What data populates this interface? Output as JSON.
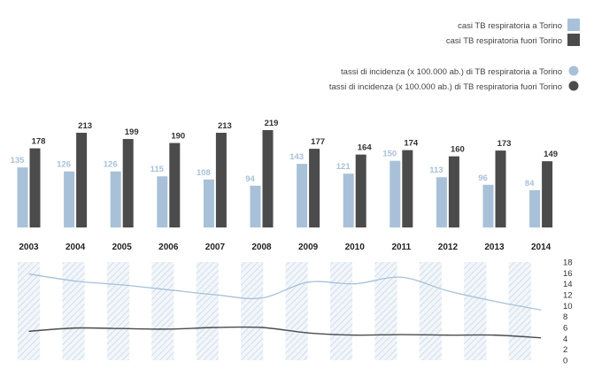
{
  "chart_data": [
    {
      "type": "bar",
      "categories": [
        "2003",
        "2004",
        "2005",
        "2006",
        "2007",
        "2008",
        "2009",
        "2010",
        "2011",
        "2012",
        "2013",
        "2014"
      ],
      "series": [
        {
          "name": "casi TB respiratoria a Torino",
          "color": "#a8c1d9",
          "values": [
            135,
            126,
            126,
            115,
            108,
            94,
            143,
            121,
            150,
            113,
            96,
            84
          ]
        },
        {
          "name": "casi TB respiratoria fuori Torino",
          "color": "#4b4b4b",
          "values": [
            178,
            213,
            199,
            190,
            213,
            219,
            177,
            164,
            174,
            160,
            173,
            149
          ]
        }
      ],
      "legend_position": "top-right"
    },
    {
      "type": "line",
      "x": [
        "2003",
        "2004",
        "2005",
        "2006",
        "2007",
        "2008",
        "2009",
        "2010",
        "2011",
        "2012",
        "2013",
        "2014"
      ],
      "series": [
        {
          "name": "tassi di incidenza (x 100.000 ab.) di TB respiratoria a Torino",
          "color": "#a8c1d9",
          "values": [
            15.8,
            14.5,
            13.8,
            12.9,
            12.0,
            11.4,
            14.3,
            14.0,
            15.2,
            12.7,
            10.8,
            9.2
          ]
        },
        {
          "name": "tassi di incidenza (x 100.000 ab.) di TB respiratoria fuori Torino",
          "color": "#4b4b4b",
          "values": [
            5.3,
            5.9,
            5.8,
            5.7,
            6.0,
            6.0,
            5.0,
            4.6,
            4.7,
            4.6,
            4.6,
            4.1
          ]
        }
      ],
      "yticks": [
        0,
        2,
        4,
        6,
        8,
        10,
        12,
        14,
        16,
        18
      ],
      "ylim": [
        0,
        18
      ],
      "grid": false
    }
  ]
}
